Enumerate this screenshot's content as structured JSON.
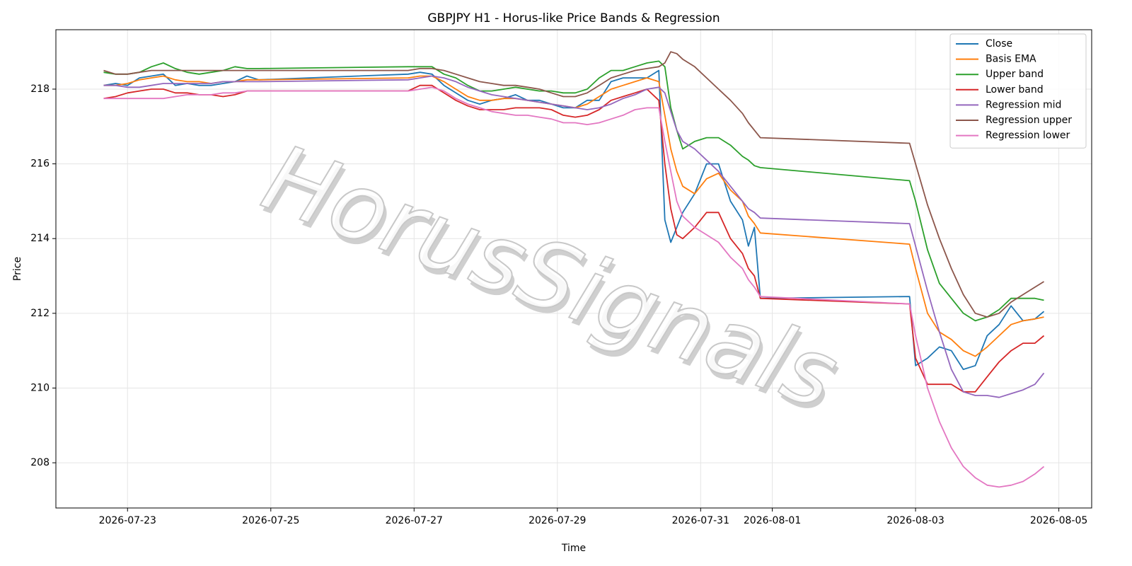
{
  "chart_data": {
    "type": "line",
    "title": "GBPJPY H1 - Horus-like Price Bands & Regression",
    "x_label": "Time",
    "y_label": "Price",
    "watermark": "HorusSignals",
    "x": [
      "2026-07-22 16:00",
      "2026-07-22 20:00",
      "2026-07-23 00:00",
      "2026-07-23 04:00",
      "2026-07-23 08:00",
      "2026-07-23 12:00",
      "2026-07-23 16:00",
      "2026-07-23 20:00",
      "2026-07-24 00:00",
      "2026-07-24 04:00",
      "2026-07-24 08:00",
      "2026-07-24 12:00",
      "2026-07-24 16:00",
      "2026-07-24 20:00",
      "2026-07-26 22:00",
      "2026-07-27 02:00",
      "2026-07-27 06:00",
      "2026-07-27 10:00",
      "2026-07-27 14:00",
      "2026-07-27 18:00",
      "2026-07-27 22:00",
      "2026-07-28 02:00",
      "2026-07-28 06:00",
      "2026-07-28 10:00",
      "2026-07-28 14:00",
      "2026-07-28 18:00",
      "2026-07-28 22:00",
      "2026-07-29 02:00",
      "2026-07-29 06:00",
      "2026-07-29 10:00",
      "2026-07-29 14:00",
      "2026-07-29 18:00",
      "2026-07-29 22:00",
      "2026-07-30 02:00",
      "2026-07-30 06:00",
      "2026-07-30 10:00",
      "2026-07-30 12:00",
      "2026-07-30 14:00",
      "2026-07-30 16:00",
      "2026-07-30 18:00",
      "2026-07-30 22:00",
      "2026-07-31 02:00",
      "2026-07-31 06:00",
      "2026-07-31 10:00",
      "2026-07-31 14:00",
      "2026-07-31 16:00",
      "2026-07-31 18:00",
      "2026-07-31 20:00",
      "2026-08-02 22:00",
      "2026-08-03 00:00",
      "2026-08-03 04:00",
      "2026-08-03 08:00",
      "2026-08-03 12:00",
      "2026-08-03 16:00",
      "2026-08-03 20:00",
      "2026-08-04 00:00",
      "2026-08-04 04:00",
      "2026-08-04 08:00",
      "2026-08-04 12:00",
      "2026-08-04 16:00",
      "2026-08-04 19:00"
    ],
    "series": [
      {
        "name": "Close",
        "color": "#1f77b4",
        "values": [
          218.1,
          218.15,
          218.1,
          218.3,
          218.35,
          218.4,
          218.1,
          218.15,
          218.1,
          218.1,
          218.15,
          218.2,
          218.35,
          218.25,
          218.4,
          218.45,
          218.4,
          218.1,
          217.9,
          217.7,
          217.6,
          217.7,
          217.75,
          217.85,
          217.7,
          217.7,
          217.6,
          217.5,
          217.5,
          217.7,
          217.7,
          218.2,
          218.3,
          218.3,
          218.3,
          218.5,
          214.5,
          213.9,
          214.3,
          214.7,
          215.2,
          216.0,
          216.0,
          215.0,
          214.5,
          213.8,
          214.3,
          212.4,
          212.45,
          210.6,
          210.8,
          211.1,
          211.0,
          210.5,
          210.6,
          211.4,
          211.7,
          212.2,
          211.8,
          211.85,
          212.05
        ]
      },
      {
        "name": "Basis EMA",
        "color": "#ff7f0e",
        "values": [
          218.1,
          218.1,
          218.15,
          218.25,
          218.3,
          218.35,
          218.25,
          218.2,
          218.2,
          218.15,
          218.2,
          218.2,
          218.25,
          218.25,
          218.3,
          218.35,
          218.35,
          218.2,
          218.0,
          217.8,
          217.7,
          217.7,
          217.75,
          217.75,
          217.7,
          217.65,
          217.6,
          217.55,
          217.5,
          217.6,
          217.8,
          218.0,
          218.1,
          218.2,
          218.3,
          218.2,
          217.3,
          216.4,
          215.8,
          215.4,
          215.2,
          215.6,
          215.75,
          215.3,
          215.0,
          214.6,
          214.4,
          214.15,
          213.85,
          213.2,
          212.0,
          211.5,
          211.3,
          211.0,
          210.85,
          211.1,
          211.4,
          211.7,
          211.8,
          211.85,
          211.9
        ]
      },
      {
        "name": "Upper band",
        "color": "#2ca02c",
        "values": [
          218.45,
          218.4,
          218.4,
          218.45,
          218.6,
          218.7,
          218.55,
          218.45,
          218.4,
          218.45,
          218.5,
          218.6,
          218.55,
          218.55,
          218.6,
          218.6,
          218.6,
          218.4,
          218.3,
          218.1,
          217.95,
          217.95,
          218.0,
          218.05,
          218.0,
          217.95,
          217.95,
          217.9,
          217.9,
          218.0,
          218.3,
          218.5,
          218.5,
          218.6,
          218.7,
          218.75,
          218.6,
          217.5,
          216.9,
          216.4,
          216.6,
          216.7,
          216.7,
          216.5,
          216.2,
          216.1,
          215.95,
          215.9,
          215.55,
          215.0,
          213.7,
          212.8,
          212.4,
          212.0,
          211.8,
          211.9,
          212.1,
          212.4,
          212.4,
          212.4,
          212.35
        ]
      },
      {
        "name": "Lower band",
        "color": "#d62728",
        "values": [
          217.75,
          217.8,
          217.9,
          217.95,
          218.0,
          218.0,
          217.9,
          217.9,
          217.85,
          217.85,
          217.8,
          217.85,
          217.95,
          217.95,
          217.95,
          218.1,
          218.1,
          217.9,
          217.7,
          217.55,
          217.45,
          217.45,
          217.45,
          217.5,
          217.5,
          217.5,
          217.45,
          217.3,
          217.25,
          217.3,
          217.45,
          217.7,
          217.8,
          217.9,
          218.0,
          217.7,
          216.0,
          214.8,
          214.1,
          214.0,
          214.3,
          214.7,
          214.7,
          214.0,
          213.6,
          213.2,
          213.0,
          212.4,
          212.25,
          210.8,
          210.1,
          210.1,
          210.1,
          209.9,
          209.9,
          210.3,
          210.7,
          211.0,
          211.2,
          211.2,
          211.4
        ]
      },
      {
        "name": "Regression mid",
        "color": "#9467bd",
        "values": [
          218.1,
          218.1,
          218.05,
          218.05,
          218.1,
          218.15,
          218.15,
          218.15,
          218.15,
          218.15,
          218.2,
          218.2,
          218.2,
          218.2,
          218.25,
          218.3,
          218.35,
          218.3,
          218.2,
          218.05,
          217.95,
          217.85,
          217.8,
          217.75,
          217.7,
          217.65,
          217.6,
          217.55,
          217.5,
          217.45,
          217.5,
          217.6,
          217.75,
          217.85,
          218.0,
          218.05,
          217.9,
          217.4,
          216.9,
          216.6,
          216.4,
          216.1,
          215.8,
          215.4,
          215.0,
          214.8,
          214.7,
          214.55,
          214.4,
          213.8,
          212.6,
          211.5,
          210.5,
          209.9,
          209.8,
          209.8,
          209.75,
          209.85,
          209.95,
          210.1,
          210.4
        ]
      },
      {
        "name": "Regression upper",
        "color": "#8c564b",
        "values": [
          218.5,
          218.4,
          218.4,
          218.45,
          218.5,
          218.5,
          218.5,
          218.5,
          218.5,
          218.5,
          218.5,
          218.5,
          218.5,
          218.5,
          218.5,
          218.55,
          218.55,
          218.5,
          218.4,
          218.3,
          218.2,
          218.15,
          218.1,
          218.1,
          218.05,
          218.0,
          217.9,
          217.8,
          217.8,
          217.9,
          218.1,
          218.3,
          218.4,
          218.5,
          218.55,
          218.6,
          218.7,
          219.0,
          218.95,
          218.8,
          218.6,
          218.3,
          218.0,
          217.7,
          217.35,
          217.1,
          216.9,
          216.7,
          216.55,
          216.0,
          214.9,
          214.0,
          213.2,
          212.5,
          212.0,
          211.9,
          212.0,
          212.3,
          212.5,
          212.7,
          212.85
        ]
      },
      {
        "name": "Regression lower",
        "color": "#e377c2",
        "values": [
          217.75,
          217.75,
          217.75,
          217.75,
          217.75,
          217.75,
          217.8,
          217.85,
          217.85,
          217.85,
          217.9,
          217.9,
          217.95,
          217.95,
          217.95,
          218.0,
          218.05,
          217.95,
          217.75,
          217.6,
          217.5,
          217.4,
          217.35,
          217.3,
          217.3,
          217.25,
          217.2,
          217.1,
          217.1,
          217.05,
          217.1,
          217.2,
          217.3,
          217.45,
          217.5,
          217.5,
          216.6,
          215.8,
          215.0,
          214.6,
          214.3,
          214.1,
          213.9,
          213.5,
          213.2,
          212.9,
          212.7,
          212.45,
          212.25,
          211.4,
          210.0,
          209.1,
          208.4,
          207.9,
          207.6,
          207.4,
          207.35,
          207.4,
          207.5,
          207.7,
          207.9
        ]
      }
    ],
    "xlim": [
      "2026-07-22 00:00",
      "2026-08-05 11:00"
    ],
    "xticks": [
      "2026-07-23",
      "2026-07-25",
      "2026-07-27",
      "2026-07-29",
      "2026-07-31",
      "2026-08-01",
      "2026-08-03",
      "2026-08-05"
    ],
    "ylim": [
      206.79,
      219.59
    ],
    "yticks": [
      208,
      210,
      212,
      214,
      216,
      218
    ],
    "grid": true,
    "legend": "upper right"
  }
}
